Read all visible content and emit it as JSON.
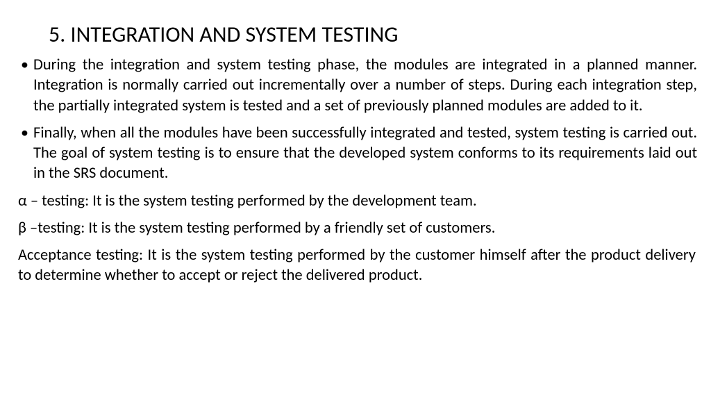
{
  "title": {
    "number": "5.",
    "text": "INTEGRATION AND SYSTEM TESTING"
  },
  "bullets": [
    "During the integration and system testing phase, the modules are integrated in a planned manner. Integration is normally carried out incrementally over a number of steps. During each integration step, the partially integrated system is tested and a set of previously planned modules are added to it.",
    "Finally, when all the modules have been successfully integrated and tested, system testing is carried out. The goal of system testing is to ensure that the developed system conforms to its requirements laid out in the SRS document."
  ],
  "paragraphs": [
    "α – testing: It is the system testing performed by the development team.",
    "β –testing: It is the system testing performed by a friendly set of customers.",
    "Acceptance testing: It is the system testing performed by the customer himself after the product delivery to determine whether to accept or reject the delivered product."
  ],
  "styles": {
    "background_color": "#ffffff",
    "text_color": "#000000",
    "title_fontsize": 32,
    "body_fontsize": 22.5,
    "font_family": "Calibri"
  }
}
